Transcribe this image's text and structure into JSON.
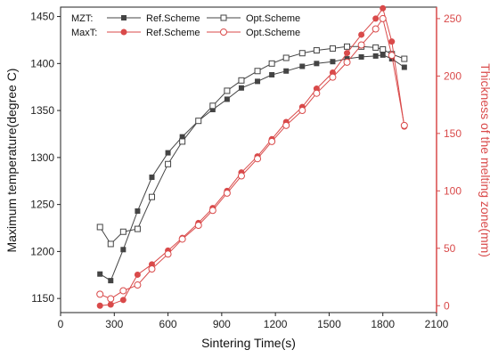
{
  "chart_data": {
    "type": "line",
    "xlabel": "Sintering Time(s)",
    "ylabel": "Maximum temperature(degree C)",
    "y2label": "Thickness of the melting zone(mm)",
    "xlim": [
      0,
      2100
    ],
    "ylim": [
      1135,
      1460
    ],
    "y2lim": [
      -6,
      260
    ],
    "xticks": [
      0,
      300,
      600,
      900,
      1200,
      1500,
      1800,
      2100
    ],
    "yticks": [
      1150,
      1200,
      1250,
      1300,
      1350,
      1400,
      1450
    ],
    "y2ticks": [
      0,
      50,
      100,
      150,
      200,
      250
    ],
    "legend": {
      "placement": "top-left",
      "groups": [
        {
          "title": "MZT:",
          "entries": [
            "Ref.Scheme",
            "Opt.Scheme"
          ]
        },
        {
          "title": "MaxT:",
          "entries": [
            "Ref.Scheme",
            "Opt.Scheme"
          ]
        }
      ]
    },
    "series": [
      {
        "group": "MZT",
        "name": "Ref.Scheme",
        "axis": "left",
        "color": "#444444",
        "marker": "square-filled",
        "x": [
          220,
          280,
          350,
          430,
          510,
          600,
          680,
          770,
          850,
          930,
          1010,
          1100,
          1180,
          1260,
          1350,
          1430,
          1520,
          1600,
          1680,
          1760,
          1800,
          1850,
          1920
        ],
        "y": [
          1176,
          1169,
          1202,
          1243,
          1279,
          1305,
          1322,
          1339,
          1351,
          1362,
          1374,
          1381,
          1388,
          1392,
          1397,
          1400,
          1402,
          1405,
          1407,
          1408,
          1409,
          1405,
          1396
        ]
      },
      {
        "group": "MZT",
        "name": "Opt.Scheme",
        "axis": "left",
        "color": "#444444",
        "marker": "square-open",
        "x": [
          220,
          280,
          350,
          430,
          510,
          600,
          680,
          770,
          850,
          930,
          1010,
          1100,
          1180,
          1260,
          1350,
          1430,
          1520,
          1600,
          1680,
          1760,
          1800,
          1850,
          1920
        ],
        "y": [
          1226,
          1208,
          1221,
          1224,
          1258,
          1293,
          1317,
          1339,
          1355,
          1371,
          1382,
          1392,
          1400,
          1406,
          1411,
          1414,
          1416,
          1418,
          1418,
          1417,
          1415,
          1410,
          1405
        ]
      },
      {
        "group": "MaxT",
        "name": "Ref.Scheme",
        "axis": "right",
        "color": "#d94a4a",
        "marker": "circle-filled",
        "x": [
          220,
          280,
          350,
          430,
          510,
          600,
          680,
          770,
          850,
          930,
          1010,
          1100,
          1180,
          1260,
          1350,
          1430,
          1520,
          1600,
          1680,
          1760,
          1800,
          1850,
          1920
        ],
        "y": [
          0,
          1,
          5,
          27,
          36,
          48,
          59,
          72,
          85,
          100,
          116,
          130,
          145,
          160,
          173,
          189,
          203,
          220,
          236,
          250,
          259,
          230,
          156
        ]
      },
      {
        "group": "MaxT",
        "name": "Opt.Scheme",
        "axis": "right",
        "color": "#d94a4a",
        "marker": "circle-open",
        "x": [
          220,
          280,
          350,
          430,
          510,
          600,
          680,
          770,
          850,
          930,
          1010,
          1100,
          1180,
          1260,
          1350,
          1430,
          1520,
          1600,
          1680,
          1760,
          1800,
          1850,
          1920
        ],
        "y": [
          10,
          6,
          13,
          18,
          32,
          45,
          58,
          70,
          83,
          98,
          113,
          128,
          143,
          157,
          170,
          185,
          199,
          212,
          227,
          241,
          250,
          218,
          157
        ]
      }
    ]
  }
}
